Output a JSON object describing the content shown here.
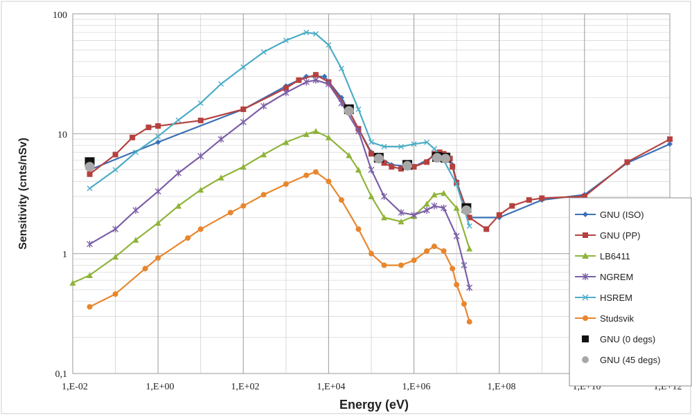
{
  "chart_data": {
    "type": "line",
    "title": "",
    "xlabel": "Energy (eV)",
    "ylabel": "Sensitivity (cnts/nSv)",
    "xscale": "log",
    "yscale": "log",
    "xlim": [
      0.01,
      1000000000000.0
    ],
    "ylim": [
      0.1,
      100
    ],
    "x_ticks": [
      "1,E-02",
      "1,E+00",
      "1,E+02",
      "1,E+04",
      "1,E+06",
      "1,E+08",
      "1,E+10",
      "1,E+12"
    ],
    "y_ticks": [
      "0,1",
      "1",
      "10",
      "100"
    ],
    "grid": true,
    "legend_position": "bottom-right",
    "series": [
      {
        "name": "GNU (ISO)",
        "color": "#3a6fb7",
        "marker": "diamond",
        "line": true,
        "x": [
          0.025,
          1,
          100,
          1000,
          3000,
          8000,
          20000,
          50000,
          100000,
          300000,
          1000000,
          3000000,
          5000000,
          8000000,
          10000000,
          20000000,
          100000000,
          1000000000,
          10000000000,
          100000000000,
          1000000000000
        ],
        "y": [
          5.0,
          8.5,
          16,
          25,
          30,
          30,
          20,
          11,
          7,
          5.5,
          5.3,
          6.5,
          6.5,
          5.5,
          4,
          2,
          2,
          2.8,
          3.1,
          5.7,
          8.2
        ]
      },
      {
        "name": "GNU (PP)",
        "color": "#b5413e",
        "marker": "square",
        "line": true,
        "x": [
          0.025,
          0.1,
          0.25,
          0.6,
          1,
          10,
          100,
          1000,
          2000,
          5000,
          10000,
          30000,
          50000,
          100000,
          200000,
          300000,
          500000,
          1000000,
          2000000,
          3000000,
          4000000,
          5000000,
          6000000,
          7000000,
          8000000,
          10000000,
          20000000,
          50000000,
          100000000,
          200000000,
          500000000,
          1000000000,
          10000000000,
          100000000000,
          1000000000000
        ],
        "y": [
          4.6,
          6.7,
          9.3,
          11.3,
          11.6,
          12.9,
          16,
          24,
          28,
          31,
          27,
          15.5,
          11,
          6.8,
          5.7,
          5.3,
          5.1,
          5.3,
          5.8,
          6.8,
          7,
          6.8,
          6.6,
          6.2,
          5.3,
          3.9,
          2.0,
          1.6,
          2.1,
          2.5,
          2.8,
          2.9,
          3.0,
          5.8,
          9.0
        ]
      },
      {
        "name": "LB6411",
        "color": "#8fb43a",
        "marker": "triangle",
        "line": true,
        "x": [
          0.01,
          0.025,
          0.1,
          0.3,
          1,
          3,
          10,
          30,
          100,
          300,
          1000,
          3000,
          5000,
          10000,
          30000,
          50000,
          100000,
          200000,
          500000,
          1000000,
          2000000,
          3000000,
          5000000,
          10000000,
          20000000
        ],
        "y": [
          0.57,
          0.66,
          0.94,
          1.3,
          1.8,
          2.5,
          3.4,
          4.3,
          5.3,
          6.7,
          8.5,
          9.9,
          10.5,
          9.3,
          6.6,
          5.0,
          3.0,
          2.0,
          1.85,
          2.05,
          2.6,
          3.1,
          3.2,
          2.4,
          1.1
        ]
      },
      {
        "name": "NGREM",
        "color": "#7b5ea7",
        "marker": "star",
        "line": true,
        "x": [
          0.025,
          0.1,
          0.3,
          1,
          3,
          10,
          30,
          100,
          300,
          1000,
          3000,
          5000,
          10000,
          20000,
          50000,
          100000,
          200000,
          500000,
          1000000,
          2000000,
          3000000,
          5000000,
          10000000,
          15000000,
          20000000
        ],
        "y": [
          1.2,
          1.6,
          2.3,
          3.3,
          4.7,
          6.5,
          9,
          12.5,
          17,
          22,
          27,
          28,
          26,
          18,
          10.5,
          5,
          3,
          2.2,
          2.1,
          2.3,
          2.5,
          2.4,
          1.4,
          0.8,
          0.52
        ]
      },
      {
        "name": "HSREM",
        "color": "#4bacc6",
        "marker": "x",
        "line": true,
        "x": [
          0.025,
          0.1,
          0.3,
          1,
          3,
          10,
          30,
          100,
          300,
          1000,
          3000,
          5000,
          10000,
          20000,
          50000,
          100000,
          200000,
          500000,
          1000000,
          2000000,
          3000000,
          5000000,
          10000000,
          20000000
        ],
        "y": [
          3.5,
          5,
          7,
          9.5,
          13,
          18,
          26,
          36,
          48,
          60,
          70,
          68,
          55,
          35,
          16,
          8.5,
          7.8,
          7.8,
          8.2,
          8.5,
          7.5,
          6,
          3.8,
          1.7
        ]
      },
      {
        "name": "Studsvik",
        "color": "#e8862d",
        "marker": "circle",
        "line": true,
        "x": [
          0.025,
          0.1,
          0.5,
          1,
          5,
          10,
          50,
          100,
          300,
          1000,
          3000,
          5000,
          10000,
          20000,
          50000,
          100000,
          200000,
          500000,
          1000000,
          2000000,
          3000000,
          5000000,
          8000000,
          10000000,
          15000000,
          20000000
        ],
        "y": [
          0.36,
          0.46,
          0.75,
          0.92,
          1.35,
          1.6,
          2.2,
          2.5,
          3.1,
          3.8,
          4.5,
          4.8,
          4.0,
          2.8,
          1.6,
          1.0,
          0.8,
          0.8,
          0.88,
          1.05,
          1.15,
          1.05,
          0.75,
          0.55,
          0.38,
          0.27
        ]
      },
      {
        "name": "GNU (0 degs)",
        "color": "#111111",
        "marker": "square",
        "line": false,
        "x": [
          0.025,
          30000,
          150000,
          700000,
          3500000,
          5500000,
          17000000
        ],
        "y": [
          5.8,
          16,
          6.3,
          5.5,
          6.4,
          6.3,
          2.4
        ]
      },
      {
        "name": "GNU (45 degs)",
        "color": "#a8a8a8",
        "marker": "circle",
        "line": false,
        "x": [
          0.025,
          30000,
          150000,
          700000,
          3500000,
          5500000,
          17000000
        ],
        "y": [
          5.3,
          15.5,
          6.2,
          5.4,
          6.3,
          6.2,
          2.3
        ]
      }
    ]
  },
  "ui": {
    "x_tick_labels": [
      "1,E-02",
      "1,E+00",
      "1,E+02",
      "1,E+04",
      "1,E+06",
      "1,E+08",
      "1,E+10",
      "1,E+12"
    ],
    "y_tick_labels": [
      "0,1",
      "1",
      "10",
      "100"
    ],
    "xlabel": "Energy (eV)",
    "ylabel": "Sensitivity (cnts/nSv)",
    "legend": [
      "GNU (ISO)",
      "GNU (PP)",
      "LB6411",
      "NGREM",
      "HSREM",
      "Studsvik",
      "GNU (0 degs)",
      "GNU (45 degs)"
    ]
  }
}
